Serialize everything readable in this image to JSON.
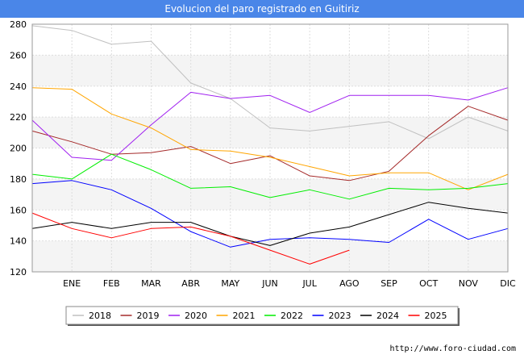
{
  "chart_data": {
    "type": "line",
    "title": "Evolucion del paro registrado en Guitiriz",
    "xlabel": "",
    "ylabel": "",
    "categories": [
      "",
      "ENE",
      "FEB",
      "MAR",
      "ABR",
      "MAY",
      "JUN",
      "JUL",
      "AGO",
      "SEP",
      "OCT",
      "NOV",
      "DIC"
    ],
    "ylim": [
      120,
      280
    ],
    "yticks": [
      120,
      140,
      160,
      180,
      200,
      220,
      240,
      260,
      280
    ],
    "grid": true,
    "legend_position": "bottom",
    "series": [
      {
        "name": "2018",
        "color": "#c0c0c0",
        "values": [
          279,
          276,
          267,
          269,
          242,
          232,
          213,
          211,
          214,
          217,
          206,
          220,
          211
        ]
      },
      {
        "name": "2019",
        "color": "#a52a2a",
        "values": [
          211,
          204,
          196,
          197,
          201,
          190,
          195,
          182,
          179,
          185,
          208,
          227,
          218
        ]
      },
      {
        "name": "2020",
        "color": "#a020f0",
        "values": [
          218,
          194,
          192,
          215,
          236,
          232,
          234,
          223,
          234,
          234,
          234,
          231,
          239
        ]
      },
      {
        "name": "2021",
        "color": "#ffa500",
        "values": [
          239,
          238,
          222,
          213,
          199,
          198,
          194,
          188,
          182,
          184,
          184,
          173,
          183
        ]
      },
      {
        "name": "2022",
        "color": "#00ee00",
        "values": [
          183,
          180,
          196,
          186,
          174,
          175,
          168,
          173,
          167,
          174,
          173,
          174,
          177
        ]
      },
      {
        "name": "2023",
        "color": "#0000ff",
        "values": [
          177,
          179,
          173,
          161,
          146,
          136,
          141,
          142,
          141,
          139,
          154,
          141,
          148
        ]
      },
      {
        "name": "2024",
        "color": "#000000",
        "values": [
          148,
          152,
          148,
          152,
          152,
          143,
          137,
          145,
          149,
          157,
          165,
          161,
          158
        ]
      },
      {
        "name": "2025",
        "color": "#ff0000",
        "values": [
          158,
          148,
          142,
          148,
          149,
          143,
          134,
          125,
          134,
          null,
          null,
          null,
          null
        ]
      }
    ]
  },
  "footer": {
    "url": "http://www.foro-ciudad.com"
  }
}
